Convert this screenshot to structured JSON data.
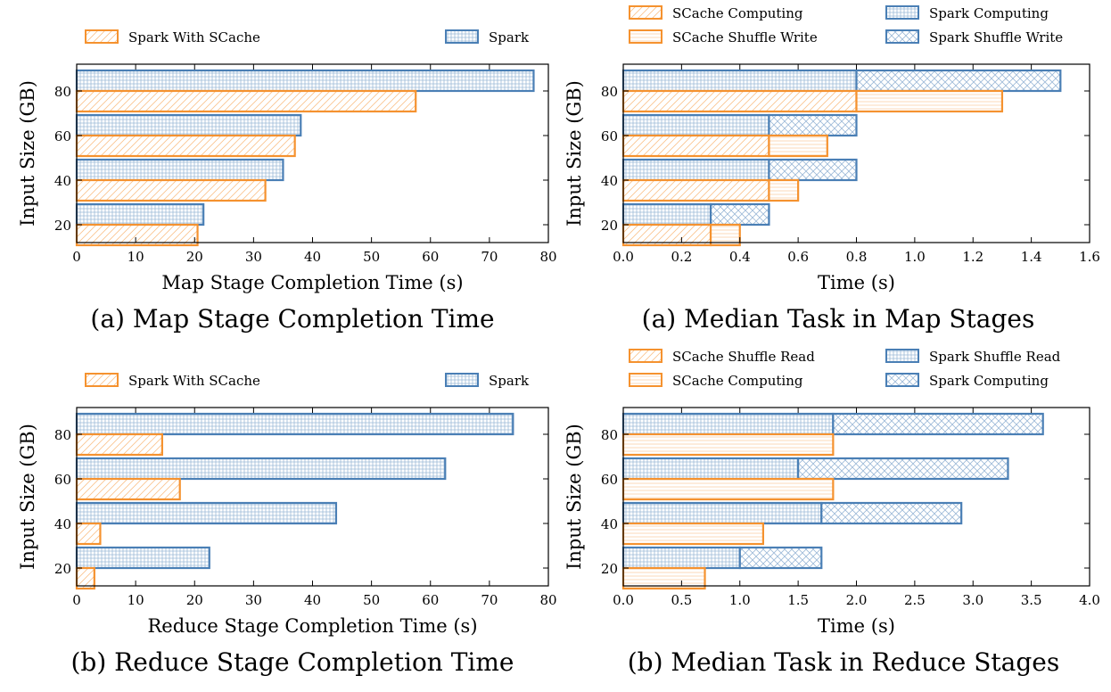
{
  "colors": {
    "orange": "#f5922f",
    "blue": "#4a7fb5"
  },
  "chart_data": [
    {
      "type": "bar",
      "orientation": "horizontal",
      "caption": "(a) Map Stage Completion Time",
      "xlabel": "Map Stage Completion Time (s)",
      "ylabel": "Input Size (GB)",
      "xlim": [
        0,
        80
      ],
      "xticks": [
        "0",
        "10",
        "20",
        "30",
        "40",
        "50",
        "60",
        "70",
        "80"
      ],
      "categories": [
        "20",
        "40",
        "60",
        "80"
      ],
      "legend": "top",
      "series": [
        {
          "name": "Spark With SCache",
          "color": "orange",
          "pattern": "diag",
          "values": [
            20.5,
            32,
            37,
            57.5
          ]
        },
        {
          "name": "Spark",
          "color": "blue",
          "pattern": "grid",
          "values": [
            21.5,
            35,
            38,
            77.5
          ]
        }
      ]
    },
    {
      "type": "bar",
      "orientation": "horizontal",
      "stacked": true,
      "caption": "(a) Median Task in Map Stages",
      "xlabel": "Time (s)",
      "ylabel": "Input Size (GB)",
      "xlim": [
        0,
        1.6
      ],
      "xticks": [
        "0.0",
        "0.2",
        "0.4",
        "0.6",
        "0.8",
        "1.0",
        "1.2",
        "1.4",
        "1.6"
      ],
      "categories": [
        "20",
        "40",
        "60",
        "80"
      ],
      "legend": "top",
      "series": [
        {
          "name": "SCache Computing",
          "color": "orange",
          "pattern": "diag",
          "group": "scache",
          "values": [
            0.3,
            0.5,
            0.5,
            0.8
          ]
        },
        {
          "name": "SCache Shuffle Write",
          "color": "orange",
          "pattern": "hline",
          "group": "scache",
          "values": [
            0.1,
            0.1,
            0.2,
            0.5
          ]
        },
        {
          "name": "Spark Computing",
          "color": "blue",
          "pattern": "grid",
          "group": "spark",
          "values": [
            0.3,
            0.5,
            0.5,
            0.8
          ]
        },
        {
          "name": "Spark Shuffle Write",
          "color": "blue",
          "pattern": "cross",
          "group": "spark",
          "values": [
            0.2,
            0.3,
            0.3,
            0.7
          ]
        }
      ]
    },
    {
      "type": "bar",
      "orientation": "horizontal",
      "caption": "(b) Reduce Stage Completion Time",
      "xlabel": "Reduce Stage Completion Time (s)",
      "ylabel": "Input Size (GB)",
      "xlim": [
        0,
        80
      ],
      "xticks": [
        "0",
        "10",
        "20",
        "30",
        "40",
        "50",
        "60",
        "70",
        "80"
      ],
      "categories": [
        "20",
        "40",
        "60",
        "80"
      ],
      "legend": "top",
      "series": [
        {
          "name": "Spark With SCache",
          "color": "orange",
          "pattern": "diag",
          "values": [
            3,
            4,
            17.5,
            14.5
          ]
        },
        {
          "name": "Spark",
          "color": "blue",
          "pattern": "grid",
          "values": [
            22.5,
            44,
            62.5,
            74
          ]
        }
      ]
    },
    {
      "type": "bar",
      "orientation": "horizontal",
      "stacked": true,
      "caption": "(b) Median Task in Reduce Stages",
      "xlabel": "Time (s)",
      "ylabel": "Input Size (GB)",
      "xlim": [
        0,
        4.0
      ],
      "xticks": [
        "0.0",
        "0.5",
        "1.0",
        "1.5",
        "2.0",
        "2.5",
        "3.0",
        "3.5",
        "4.0"
      ],
      "categories": [
        "20",
        "40",
        "60",
        "80"
      ],
      "legend": "top",
      "series": [
        {
          "name": "SCache Shuffle Read",
          "color": "orange",
          "pattern": "diag",
          "group": "scache",
          "values": [
            0.0,
            0.0,
            0.0,
            0.0
          ]
        },
        {
          "name": "SCache Computing",
          "color": "orange",
          "pattern": "hline",
          "group": "scache",
          "values": [
            0.7,
            1.2,
            1.8,
            1.8
          ]
        },
        {
          "name": "Spark Shuffle Read",
          "color": "blue",
          "pattern": "grid",
          "group": "spark",
          "values": [
            1.0,
            1.7,
            1.5,
            1.8
          ]
        },
        {
          "name": "Spark Computing",
          "color": "blue",
          "pattern": "cross",
          "group": "spark",
          "values": [
            0.7,
            1.2,
            1.8,
            1.8
          ]
        }
      ]
    }
  ]
}
